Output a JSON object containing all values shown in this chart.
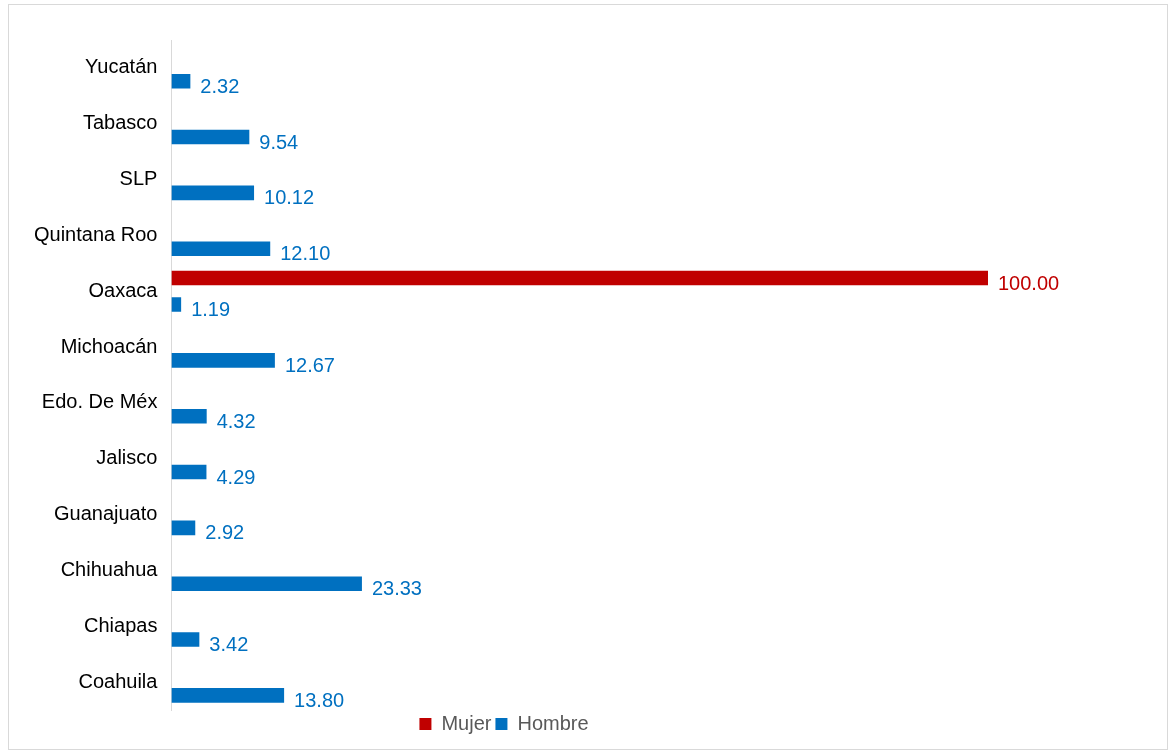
{
  "chart_data": {
    "type": "bar",
    "orientation": "horizontal",
    "categories": [
      "Yucatán",
      "Tabasco",
      "SLP",
      "Quintana Roo",
      "Oaxaca",
      "Michoacán",
      "Edo. De Méx",
      "Jalisco",
      "Guanajuato",
      "Chihuahua",
      "Chiapas",
      "Coahuila"
    ],
    "series": [
      {
        "name": "Mujer",
        "color": "#c00000",
        "values": [
          null,
          null,
          null,
          null,
          100,
          null,
          null,
          null,
          null,
          null,
          null,
          null
        ],
        "value_labels": [
          null,
          null,
          null,
          null,
          "100.00",
          null,
          null,
          null,
          null,
          null,
          null,
          null
        ]
      },
      {
        "name": "Hombre",
        "color": "#0070c0",
        "values": [
          2.32,
          9.54,
          10.12,
          12.1,
          1.19,
          12.67,
          4.32,
          4.29,
          2.92,
          23.33,
          3.42,
          13.8
        ],
        "value_labels": [
          "2.32",
          "9.54",
          "10.12",
          "12.10",
          "1.19",
          "12.67",
          "4.32",
          "4.29",
          "2.92",
          "23.33",
          "3.42",
          "13.80"
        ]
      }
    ],
    "xlim": [
      0,
      100
    ],
    "tick_labels": "y",
    "legend": "bottom"
  }
}
